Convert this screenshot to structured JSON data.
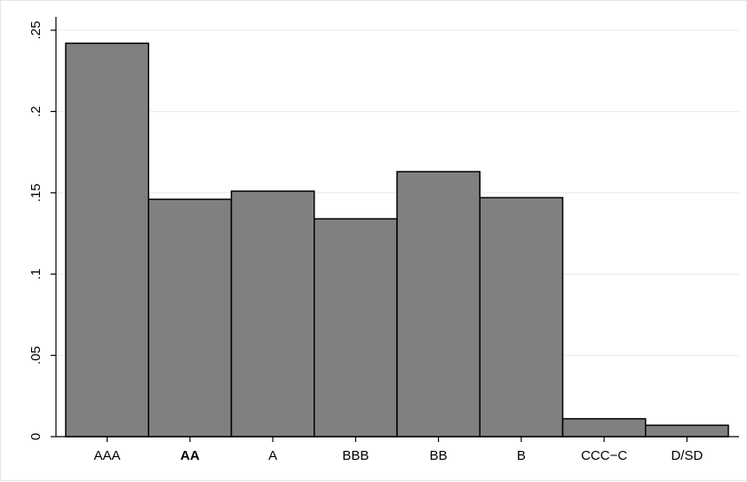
{
  "chart_data": {
    "type": "bar",
    "categories": [
      "AAA",
      "AA",
      "A",
      "BBB",
      "BB",
      "B",
      "CCC−C",
      "D/SD"
    ],
    "values": [
      0.242,
      0.146,
      0.151,
      0.134,
      0.163,
      0.147,
      0.011,
      0.007
    ],
    "title": "",
    "xlabel": "",
    "ylabel": "",
    "ylim": [
      0,
      0.25
    ],
    "yticks": [
      0,
      0.05,
      0.1,
      0.15,
      0.2,
      0.25
    ],
    "ytick_labels": [
      "0",
      ".05",
      ".1",
      ".15",
      ".2",
      ".25"
    ],
    "grid": true,
    "bar_color": "#808080",
    "bar_edge_color": "#000000",
    "grid_color": "#eaeaea",
    "bold_categories": [
      "AA"
    ]
  }
}
